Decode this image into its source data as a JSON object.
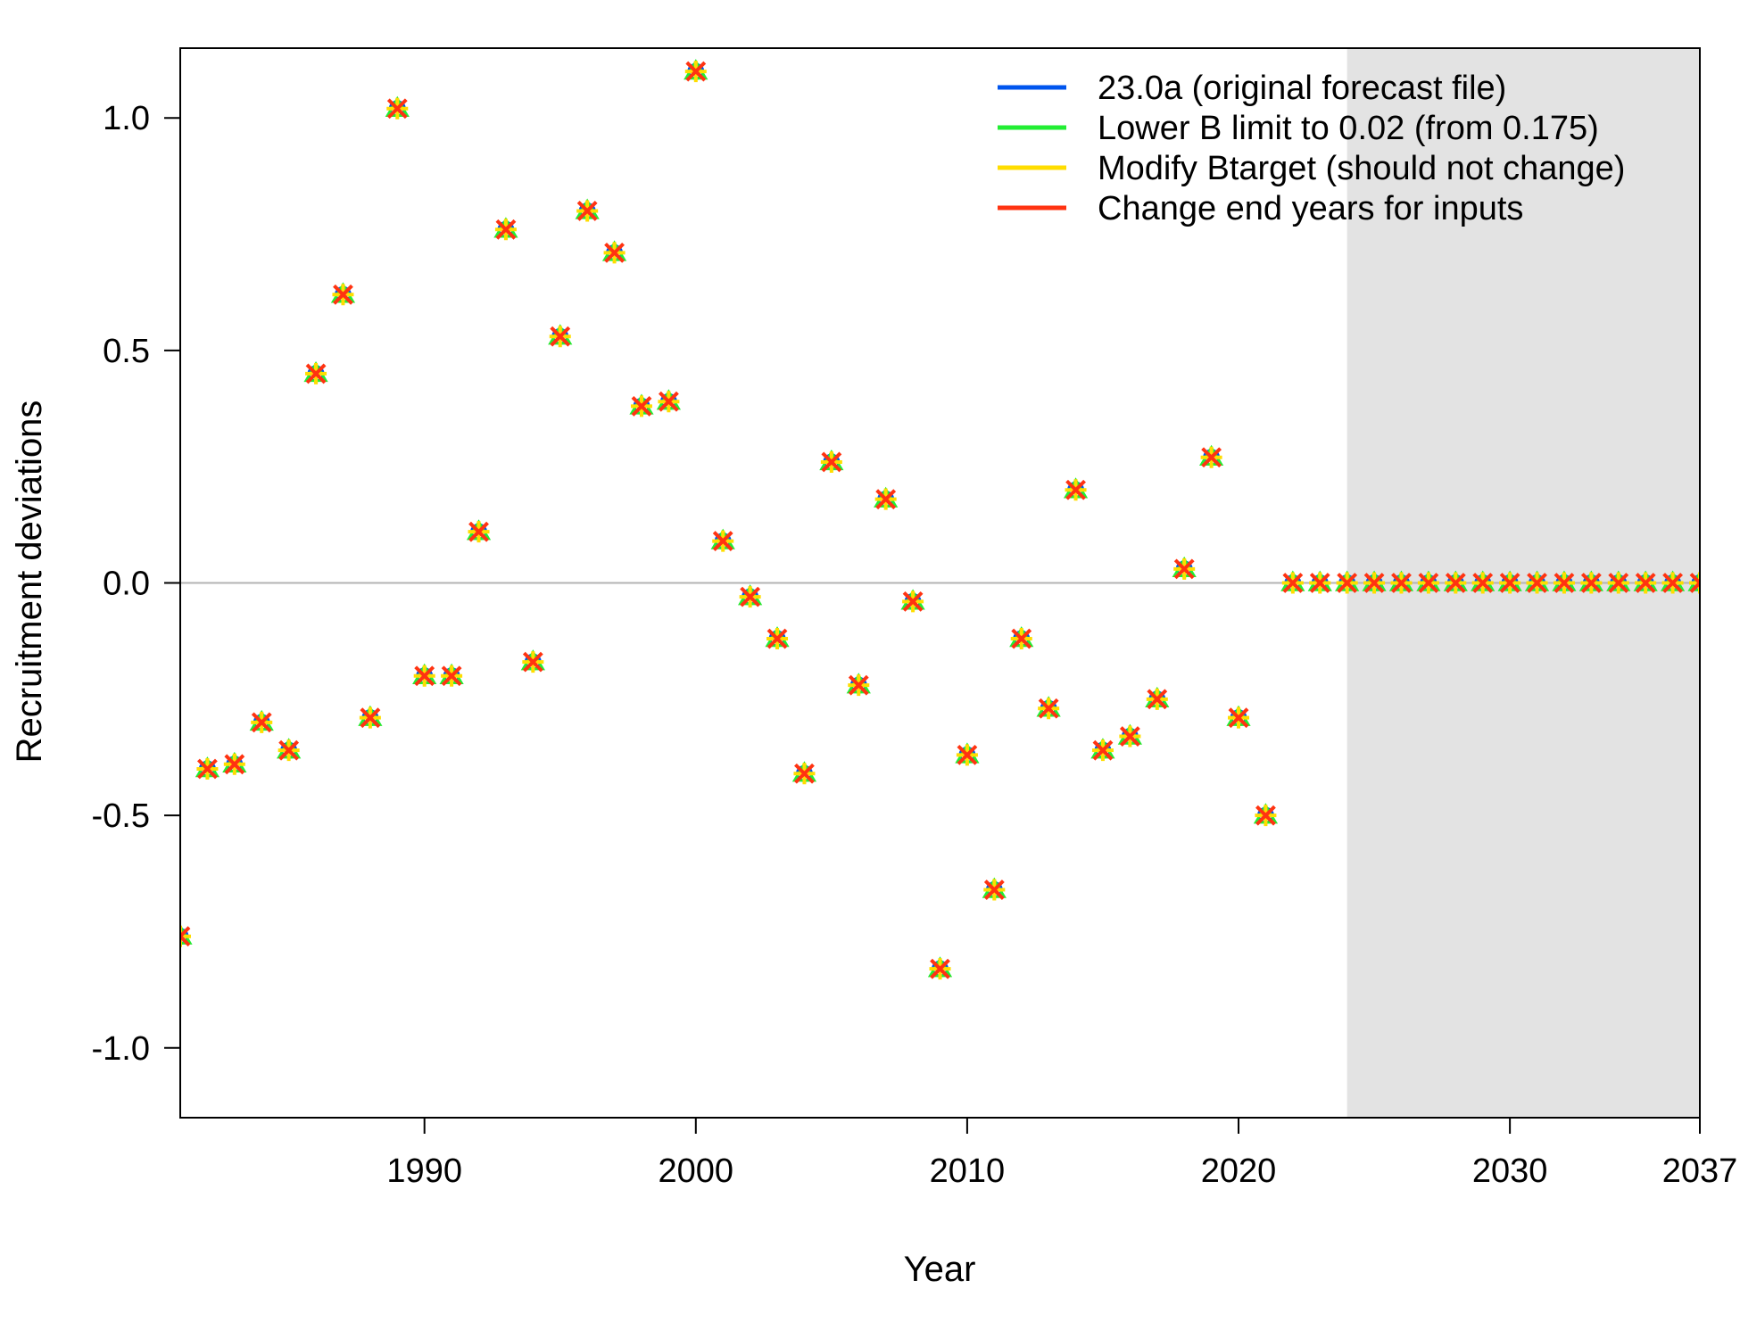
{
  "chart_data": {
    "type": "scatter",
    "xlabel": "Year",
    "ylabel": "Recruitment deviations",
    "xlim": [
      1981,
      2037
    ],
    "ylim": [
      -1.15,
      1.15
    ],
    "x_ticks": [
      1990,
      2000,
      2010,
      2020,
      2030,
      2037
    ],
    "y_ticks": [
      -1.0,
      -0.5,
      0.0,
      0.5,
      1.0
    ],
    "y_tick_labels": [
      "-1.0",
      "-0.5",
      "0.0",
      "0.5",
      "1.0"
    ],
    "forecast_shade_start": 2024,
    "zero_line": 0,
    "legend_position": "top-right",
    "x": [
      1981,
      1982,
      1983,
      1984,
      1985,
      1986,
      1987,
      1988,
      1989,
      1990,
      1991,
      1992,
      1993,
      1994,
      1995,
      1996,
      1997,
      1998,
      1999,
      2000,
      2001,
      2002,
      2003,
      2004,
      2005,
      2006,
      2007,
      2008,
      2009,
      2010,
      2011,
      2012,
      2013,
      2014,
      2015,
      2016,
      2017,
      2018,
      2019,
      2020,
      2021,
      2022,
      2023,
      2024,
      2025,
      2026,
      2027,
      2028,
      2029,
      2030,
      2031,
      2032,
      2033,
      2034,
      2035,
      2036,
      2037
    ],
    "series": [
      {
        "name": "23.0a (original forecast file)",
        "color": "#0055ee",
        "marker": "circle",
        "values": [
          -0.76,
          -0.4,
          -0.39,
          -0.3,
          -0.36,
          0.45,
          0.62,
          -0.29,
          1.02,
          -0.2,
          -0.2,
          0.11,
          0.76,
          -0.17,
          0.53,
          0.8,
          0.71,
          0.38,
          0.39,
          1.1,
          0.09,
          -0.03,
          -0.12,
          -0.41,
          0.26,
          -0.22,
          0.18,
          -0.04,
          -0.83,
          -0.37,
          -0.66,
          -0.12,
          -0.27,
          0.2,
          -0.36,
          -0.33,
          -0.25,
          0.03,
          0.27,
          -0.29,
          -0.5,
          0,
          0,
          0,
          0,
          0,
          0,
          0,
          0,
          0,
          0,
          0,
          0,
          0,
          0,
          0,
          0
        ]
      },
      {
        "name": "Lower B limit to 0.02 (from 0.175)",
        "color": "#22ee33",
        "marker": "triangle",
        "values": [
          -0.76,
          -0.4,
          -0.39,
          -0.3,
          -0.36,
          0.45,
          0.62,
          -0.29,
          1.02,
          -0.2,
          -0.2,
          0.11,
          0.76,
          -0.17,
          0.53,
          0.8,
          0.71,
          0.38,
          0.39,
          1.1,
          0.09,
          -0.03,
          -0.12,
          -0.41,
          0.26,
          -0.22,
          0.18,
          -0.04,
          -0.83,
          -0.37,
          -0.66,
          -0.12,
          -0.27,
          0.2,
          -0.36,
          -0.33,
          -0.25,
          0.03,
          0.27,
          -0.29,
          -0.5,
          0,
          0,
          0,
          0,
          0,
          0,
          0,
          0,
          0,
          0,
          0,
          0,
          0,
          0,
          0,
          0
        ]
      },
      {
        "name": "Modify Btarget (should not change)",
        "color": "#ffdd00",
        "marker": "plus",
        "values": [
          -0.76,
          -0.4,
          -0.39,
          -0.3,
          -0.36,
          0.45,
          0.62,
          -0.29,
          1.02,
          -0.2,
          -0.2,
          0.11,
          0.76,
          -0.17,
          0.53,
          0.8,
          0.71,
          0.38,
          0.39,
          1.1,
          0.09,
          -0.03,
          -0.12,
          -0.41,
          0.26,
          -0.22,
          0.18,
          -0.04,
          -0.83,
          -0.37,
          -0.66,
          -0.12,
          -0.27,
          0.2,
          -0.36,
          -0.33,
          -0.25,
          0.03,
          0.27,
          -0.29,
          -0.5,
          0,
          0,
          0,
          0,
          0,
          0,
          0,
          0,
          0,
          0,
          0,
          0,
          0,
          0,
          0,
          0
        ]
      },
      {
        "name": "Change end years for inputs",
        "color": "#ff3311",
        "marker": "cross",
        "values": [
          -0.76,
          -0.4,
          -0.39,
          -0.3,
          -0.36,
          0.45,
          0.62,
          -0.29,
          1.02,
          -0.2,
          -0.2,
          0.11,
          0.76,
          -0.17,
          0.53,
          0.8,
          0.71,
          0.38,
          0.39,
          1.1,
          0.09,
          -0.03,
          -0.12,
          -0.41,
          0.26,
          -0.22,
          0.18,
          -0.04,
          -0.83,
          -0.37,
          -0.66,
          -0.12,
          -0.27,
          0.2,
          -0.36,
          -0.33,
          -0.25,
          0.03,
          0.27,
          -0.29,
          -0.5,
          0,
          0,
          0,
          0,
          0,
          0,
          0,
          0,
          0,
          0,
          0,
          0,
          0,
          0,
          0,
          0
        ]
      }
    ]
  }
}
